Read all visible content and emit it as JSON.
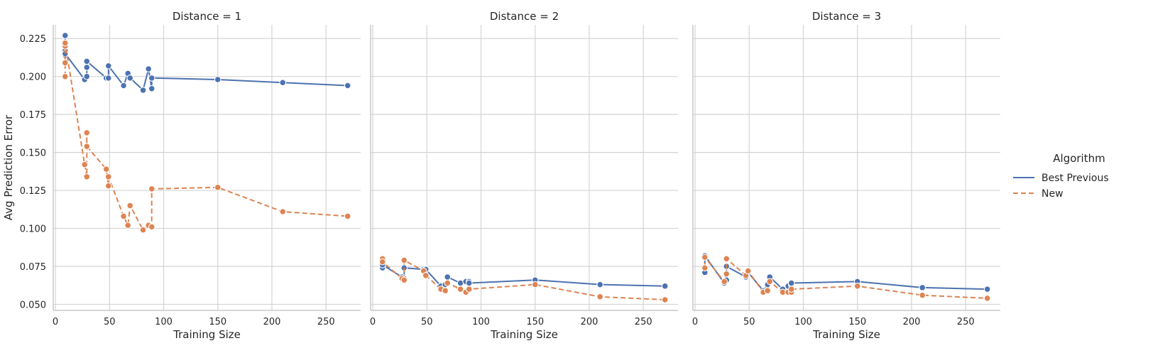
{
  "chart_data": {
    "type": "line",
    "ylabel": "Avg Prediction Error",
    "xlabel": "Training Size",
    "legend": {
      "title": "Algorithm",
      "placement": "right",
      "entries": [
        {
          "name": "Best Previous",
          "color": "#4c72b0",
          "dash": "solid"
        },
        {
          "name": "New",
          "color": "#dd8452",
          "dash": "dashed"
        }
      ]
    },
    "xlim": [
      -2,
      282
    ],
    "ylim": [
      0.046,
      0.234
    ],
    "xticks": [
      0,
      50,
      100,
      150,
      200,
      250
    ],
    "yticks": [
      0.05,
      0.075,
      0.1,
      0.125,
      0.15,
      0.175,
      0.2,
      0.225
    ],
    "ytick_labels": [
      "0.050",
      "0.075",
      "0.100",
      "0.125",
      "0.150",
      "0.175",
      "0.200",
      "0.225"
    ],
    "grid": true,
    "panels": [
      {
        "title": "Distance = 1",
        "series": [
          {
            "name": "Best Previous",
            "x": [
              9,
              9,
              9,
              9,
              27,
              29,
              29,
              29,
              47,
              49,
              49,
              63,
              67,
              69,
              81,
              86,
              89,
              89,
              150,
              210,
              270
            ],
            "y": [
              0.227,
              0.214,
              0.217,
              0.215,
              0.198,
              0.2,
              0.206,
              0.21,
              0.199,
              0.199,
              0.207,
              0.194,
              0.202,
              0.199,
              0.191,
              0.205,
              0.192,
              0.199,
              0.198,
              0.196,
              0.194
            ]
          },
          {
            "name": "New",
            "x": [
              9,
              9,
              9,
              9,
              27,
              29,
              29,
              29,
              47,
              49,
              49,
              63,
              67,
              69,
              81,
              86,
              89,
              89,
              150,
              210,
              270
            ],
            "y": [
              0.2,
              0.209,
              0.22,
              0.222,
              0.142,
              0.134,
              0.163,
              0.154,
              0.139,
              0.128,
              0.134,
              0.108,
              0.102,
              0.115,
              0.099,
              0.102,
              0.101,
              0.126,
              0.127,
              0.111,
              0.108
            ]
          }
        ]
      },
      {
        "title": "Distance = 2",
        "series": [
          {
            "name": "Best Previous",
            "x": [
              9,
              9,
              27,
              29,
              29,
              47,
              49,
              63,
              67,
              69,
              81,
              86,
              89,
              89,
              150,
              210,
              270
            ],
            "y": [
              0.074,
              0.076,
              0.068,
              0.067,
              0.074,
              0.073,
              0.073,
              0.062,
              0.063,
              0.068,
              0.064,
              0.065,
              0.065,
              0.064,
              0.066,
              0.063,
              0.062
            ]
          },
          {
            "name": "New",
            "x": [
              9,
              9,
              27,
              29,
              29,
              47,
              49,
              63,
              67,
              69,
              81,
              86,
              89,
              89,
              150,
              210,
              270
            ],
            "y": [
              0.08,
              0.078,
              0.067,
              0.066,
              0.079,
              0.072,
              0.069,
              0.06,
              0.059,
              0.064,
              0.06,
              0.058,
              0.06,
              0.06,
              0.063,
              0.055,
              0.053
            ]
          }
        ]
      },
      {
        "title": "Distance = 3",
        "series": [
          {
            "name": "Best Previous",
            "x": [
              9,
              9,
              27,
              29,
              29,
              47,
              49,
              63,
              67,
              69,
              81,
              86,
              89,
              89,
              150,
              210,
              270
            ],
            "y": [
              0.071,
              0.082,
              0.064,
              0.066,
              0.075,
              0.068,
              0.071,
              0.059,
              0.063,
              0.068,
              0.06,
              0.062,
              0.063,
              0.064,
              0.065,
              0.061,
              0.06
            ]
          },
          {
            "name": "New",
            "x": [
              9,
              9,
              27,
              29,
              29,
              47,
              49,
              63,
              67,
              69,
              81,
              86,
              89,
              89,
              150,
              210,
              270
            ],
            "y": [
              0.074,
              0.081,
              0.065,
              0.07,
              0.08,
              0.069,
              0.072,
              0.058,
              0.059,
              0.065,
              0.058,
              0.058,
              0.058,
              0.06,
              0.062,
              0.056,
              0.054
            ]
          }
        ]
      }
    ]
  }
}
